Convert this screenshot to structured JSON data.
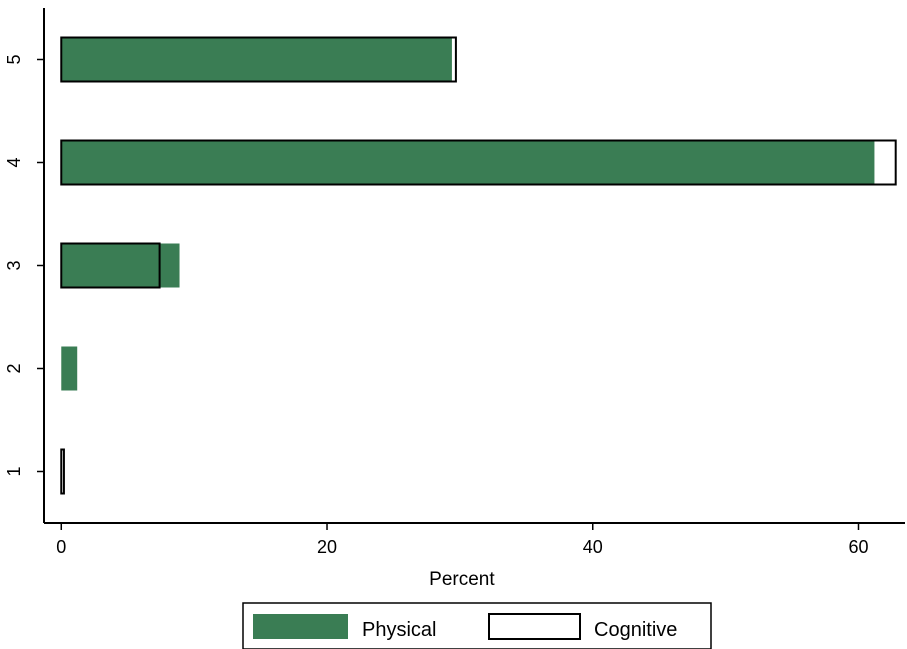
{
  "chart_data": {
    "type": "bar",
    "orientation": "horizontal",
    "categories": [
      "1",
      "2",
      "3",
      "4",
      "5"
    ],
    "series": [
      {
        "name": "Physical",
        "values": [
          0,
          1.2,
          8.9,
          61.2,
          29.4
        ],
        "color": "#3a7d54",
        "style": "filled"
      },
      {
        "name": "Cognitive",
        "values": [
          0.2,
          0,
          7.4,
          62.8,
          29.7
        ],
        "color": "#000000",
        "style": "outline"
      }
    ],
    "xlabel": "Percent",
    "xlim": [
      -1.3,
      63.5
    ],
    "xticks": [
      0,
      20,
      40,
      60
    ],
    "xtick_labels": [
      "0",
      "20",
      "40",
      "60"
    ],
    "ytick_labels": [
      "1",
      "2",
      "3",
      "4",
      "5"
    ],
    "legend_position": "bottom",
    "grid": false
  }
}
